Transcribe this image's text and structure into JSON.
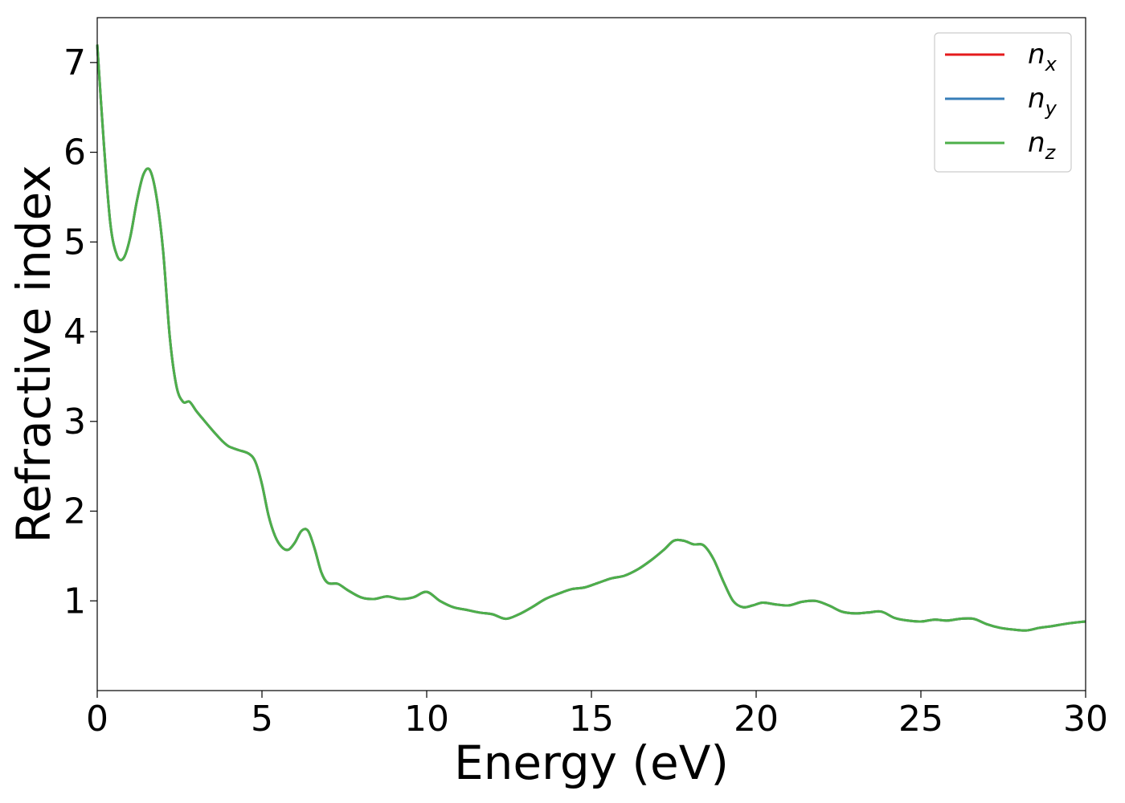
{
  "chart_data": {
    "type": "line",
    "title": "",
    "xlabel": "Energy (eV)",
    "ylabel": "Refractive index",
    "xlim": [
      0,
      30
    ],
    "ylim": [
      0,
      7.5
    ],
    "xticks": [
      0,
      5,
      10,
      15,
      20,
      25,
      30
    ],
    "xtick_labels": [
      "0",
      "5",
      "10",
      "15",
      "20",
      "25",
      "30"
    ],
    "yticks": [
      1,
      2,
      3,
      4,
      5,
      6,
      7
    ],
    "ytick_labels": [
      "1",
      "2",
      "3",
      "4",
      "5",
      "6",
      "7"
    ],
    "grid": false,
    "legend_position": "top-right",
    "x": [
      0,
      0.2,
      0.4,
      0.6,
      0.8,
      1.0,
      1.2,
      1.4,
      1.6,
      1.8,
      2.0,
      2.2,
      2.4,
      2.6,
      2.8,
      3.0,
      3.2,
      3.5,
      3.8,
      4.0,
      4.3,
      4.6,
      4.8,
      5.0,
      5.2,
      5.4,
      5.6,
      5.8,
      6.0,
      6.2,
      6.4,
      6.6,
      6.8,
      7.0,
      7.3,
      7.6,
      8.0,
      8.4,
      8.8,
      9.2,
      9.6,
      10.0,
      10.4,
      10.8,
      11.2,
      11.6,
      12.0,
      12.4,
      12.8,
      13.2,
      13.6,
      14.0,
      14.4,
      14.8,
      15.2,
      15.6,
      16.0,
      16.4,
      16.8,
      17.2,
      17.5,
      17.8,
      18.1,
      18.4,
      18.7,
      19.0,
      19.3,
      19.6,
      19.9,
      20.2,
      20.6,
      21.0,
      21.4,
      21.8,
      22.2,
      22.6,
      23.0,
      23.4,
      23.8,
      24.2,
      24.6,
      25.0,
      25.4,
      25.8,
      26.2,
      26.6,
      27.0,
      27.4,
      27.8,
      28.2,
      28.6,
      29.0,
      29.5,
      30.0
    ],
    "series": [
      {
        "name": "n_x",
        "color": "#e41a1c",
        "values": [
          7.2,
          6.1,
          5.2,
          4.85,
          4.82,
          5.05,
          5.45,
          5.75,
          5.8,
          5.5,
          4.9,
          3.95,
          3.4,
          3.22,
          3.22,
          3.12,
          3.03,
          2.9,
          2.78,
          2.72,
          2.68,
          2.64,
          2.55,
          2.3,
          1.95,
          1.72,
          1.6,
          1.57,
          1.65,
          1.78,
          1.78,
          1.58,
          1.32,
          1.2,
          1.19,
          1.12,
          1.04,
          1.02,
          1.05,
          1.02,
          1.04,
          1.1,
          1.0,
          0.93,
          0.9,
          0.87,
          0.85,
          0.8,
          0.85,
          0.93,
          1.02,
          1.08,
          1.13,
          1.15,
          1.2,
          1.25,
          1.28,
          1.35,
          1.45,
          1.57,
          1.67,
          1.67,
          1.63,
          1.62,
          1.47,
          1.22,
          1.0,
          0.93,
          0.95,
          0.98,
          0.96,
          0.95,
          0.99,
          1.0,
          0.95,
          0.88,
          0.86,
          0.87,
          0.88,
          0.81,
          0.78,
          0.77,
          0.79,
          0.78,
          0.8,
          0.8,
          0.74,
          0.7,
          0.68,
          0.67,
          0.7,
          0.72,
          0.75,
          0.77
        ]
      },
      {
        "name": "n_y",
        "color": "#377eb8",
        "values": [
          7.2,
          6.1,
          5.2,
          4.85,
          4.82,
          5.05,
          5.45,
          5.75,
          5.8,
          5.5,
          4.9,
          3.95,
          3.4,
          3.22,
          3.22,
          3.12,
          3.03,
          2.9,
          2.78,
          2.72,
          2.68,
          2.64,
          2.55,
          2.3,
          1.95,
          1.72,
          1.6,
          1.57,
          1.65,
          1.78,
          1.78,
          1.58,
          1.32,
          1.2,
          1.19,
          1.12,
          1.04,
          1.02,
          1.05,
          1.02,
          1.04,
          1.1,
          1.0,
          0.93,
          0.9,
          0.87,
          0.85,
          0.8,
          0.85,
          0.93,
          1.02,
          1.08,
          1.13,
          1.15,
          1.2,
          1.25,
          1.28,
          1.35,
          1.45,
          1.57,
          1.67,
          1.67,
          1.63,
          1.62,
          1.47,
          1.22,
          1.0,
          0.93,
          0.95,
          0.98,
          0.96,
          0.95,
          0.99,
          1.0,
          0.95,
          0.88,
          0.86,
          0.87,
          0.88,
          0.81,
          0.78,
          0.77,
          0.79,
          0.78,
          0.8,
          0.8,
          0.74,
          0.7,
          0.68,
          0.67,
          0.7,
          0.72,
          0.75,
          0.77
        ]
      },
      {
        "name": "n_z",
        "color": "#4daf4a",
        "values": [
          7.2,
          6.1,
          5.2,
          4.85,
          4.82,
          5.05,
          5.45,
          5.75,
          5.8,
          5.5,
          4.9,
          3.95,
          3.4,
          3.22,
          3.22,
          3.12,
          3.03,
          2.9,
          2.78,
          2.72,
          2.68,
          2.64,
          2.55,
          2.3,
          1.95,
          1.72,
          1.6,
          1.57,
          1.65,
          1.78,
          1.78,
          1.58,
          1.32,
          1.2,
          1.19,
          1.12,
          1.04,
          1.02,
          1.05,
          1.02,
          1.04,
          1.1,
          1.0,
          0.93,
          0.9,
          0.87,
          0.85,
          0.8,
          0.85,
          0.93,
          1.02,
          1.08,
          1.13,
          1.15,
          1.2,
          1.25,
          1.28,
          1.35,
          1.45,
          1.57,
          1.67,
          1.67,
          1.63,
          1.62,
          1.47,
          1.22,
          1.0,
          0.93,
          0.95,
          0.98,
          0.96,
          0.95,
          0.99,
          1.0,
          0.95,
          0.88,
          0.86,
          0.87,
          0.88,
          0.81,
          0.78,
          0.77,
          0.79,
          0.78,
          0.8,
          0.8,
          0.74,
          0.7,
          0.68,
          0.67,
          0.7,
          0.72,
          0.75,
          0.77
        ]
      }
    ],
    "legend": [
      {
        "base": "n",
        "sub": "x",
        "color": "#e41a1c"
      },
      {
        "base": "n",
        "sub": "y",
        "color": "#377eb8"
      },
      {
        "base": "n",
        "sub": "z",
        "color": "#4daf4a"
      }
    ]
  }
}
